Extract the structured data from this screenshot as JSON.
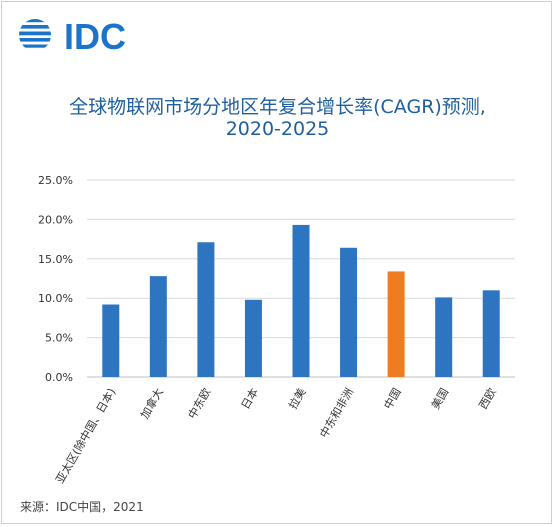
{
  "brand": {
    "logo_text": "IDC"
  },
  "header": {
    "title_line1": "全球物联网市场分地区年复合增长率(CAGR)预测,",
    "title_line2": "2020-2025"
  },
  "footer": {
    "source": "来源：IDC中国，2021"
  },
  "colors": {
    "bar": "#2e75c1",
    "highlight": "#ee7d22",
    "title": "#1f5f9e",
    "grid": "#d9d9d9"
  },
  "chart_data": {
    "type": "bar",
    "title": "全球物联网市场分地区年复合增长率(CAGR)预测, 2020-2025",
    "categories": [
      "亚太区(除中国、日本)",
      "加拿大",
      "中东欧",
      "日本",
      "拉美",
      "中东和非洲",
      "中国",
      "美国",
      "西欧"
    ],
    "values": [
      9.2,
      12.8,
      17.1,
      9.8,
      19.3,
      16.4,
      13.4,
      10.1,
      11.0
    ],
    "highlight": "中国",
    "y_ticks": [
      "0.0%",
      "5.0%",
      "10.0%",
      "15.0%",
      "20.0%",
      "25.0%"
    ],
    "ylim": [
      0,
      25
    ],
    "grid": true,
    "unit": "%"
  }
}
